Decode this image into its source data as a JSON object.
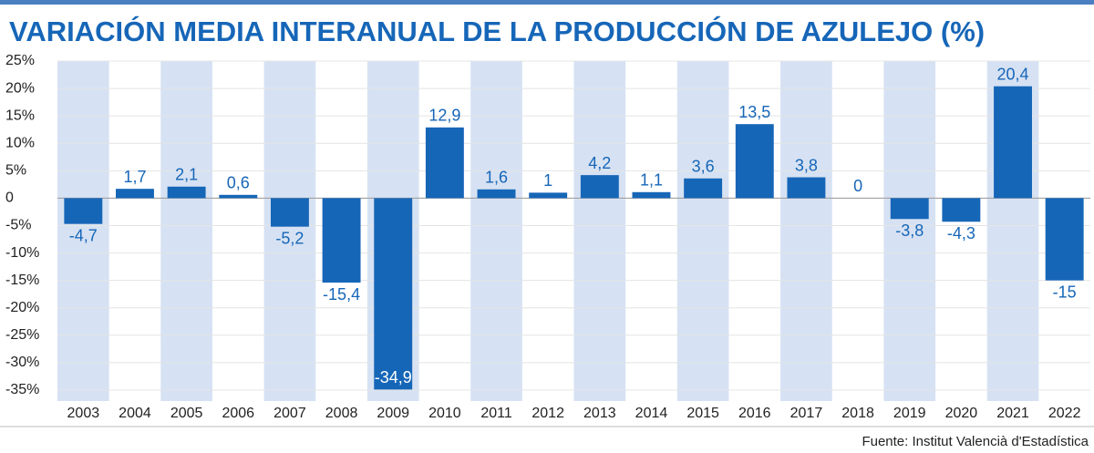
{
  "chart_data": {
    "type": "bar",
    "title": "VARIACIÓN MEDIA INTERANUAL DE LA PRODUCCIÓN DE AZULEJO (%)",
    "source": "Fuente: Institut Valencià d'Estadística",
    "categories": [
      "2003",
      "2004",
      "2005",
      "2006",
      "2007",
      "2008",
      "2009",
      "2010",
      "2011",
      "2012",
      "2013",
      "2014",
      "2015",
      "2016",
      "2017",
      "2018",
      "2019",
      "2020",
      "2021",
      "2022"
    ],
    "values": [
      -4.7,
      1.7,
      2.1,
      0.6,
      -5.2,
      -15.4,
      -34.9,
      12.9,
      1.6,
      1,
      4.2,
      1.1,
      3.6,
      13.5,
      3.8,
      0,
      -3.8,
      -4.3,
      20.4,
      -15
    ],
    "value_labels": [
      "-4,7",
      "1,7",
      "2,1",
      "0,6",
      "-5,2",
      "-15,4",
      "-34,9",
      "12,9",
      "1,6",
      "1",
      "4,2",
      "1,1",
      "3,6",
      "13,5",
      "3,8",
      "0",
      "-3,8",
      "-4,3",
      "20,4",
      "-15"
    ],
    "color": "#1666b8",
    "ylim": [
      -37,
      25
    ],
    "yticks": [
      {
        "value": 25,
        "label": "25%"
      },
      {
        "value": 20,
        "label": "20%"
      },
      {
        "value": 15,
        "label": "15%"
      },
      {
        "value": 10,
        "label": "10%"
      },
      {
        "value": 5,
        "label": "5%"
      },
      0,
      {
        "value": -5,
        "label": "-5%"
      },
      {
        "value": -10,
        "label": "-10%"
      },
      {
        "value": -15,
        "label": "-15%"
      },
      {
        "value": -20,
        "label": "-20%"
      },
      {
        "value": -25,
        "label": "-25%"
      },
      {
        "value": -30,
        "label": "-30%"
      },
      {
        "value": -35,
        "label": "-35%"
      }
    ],
    "grid": true
  }
}
